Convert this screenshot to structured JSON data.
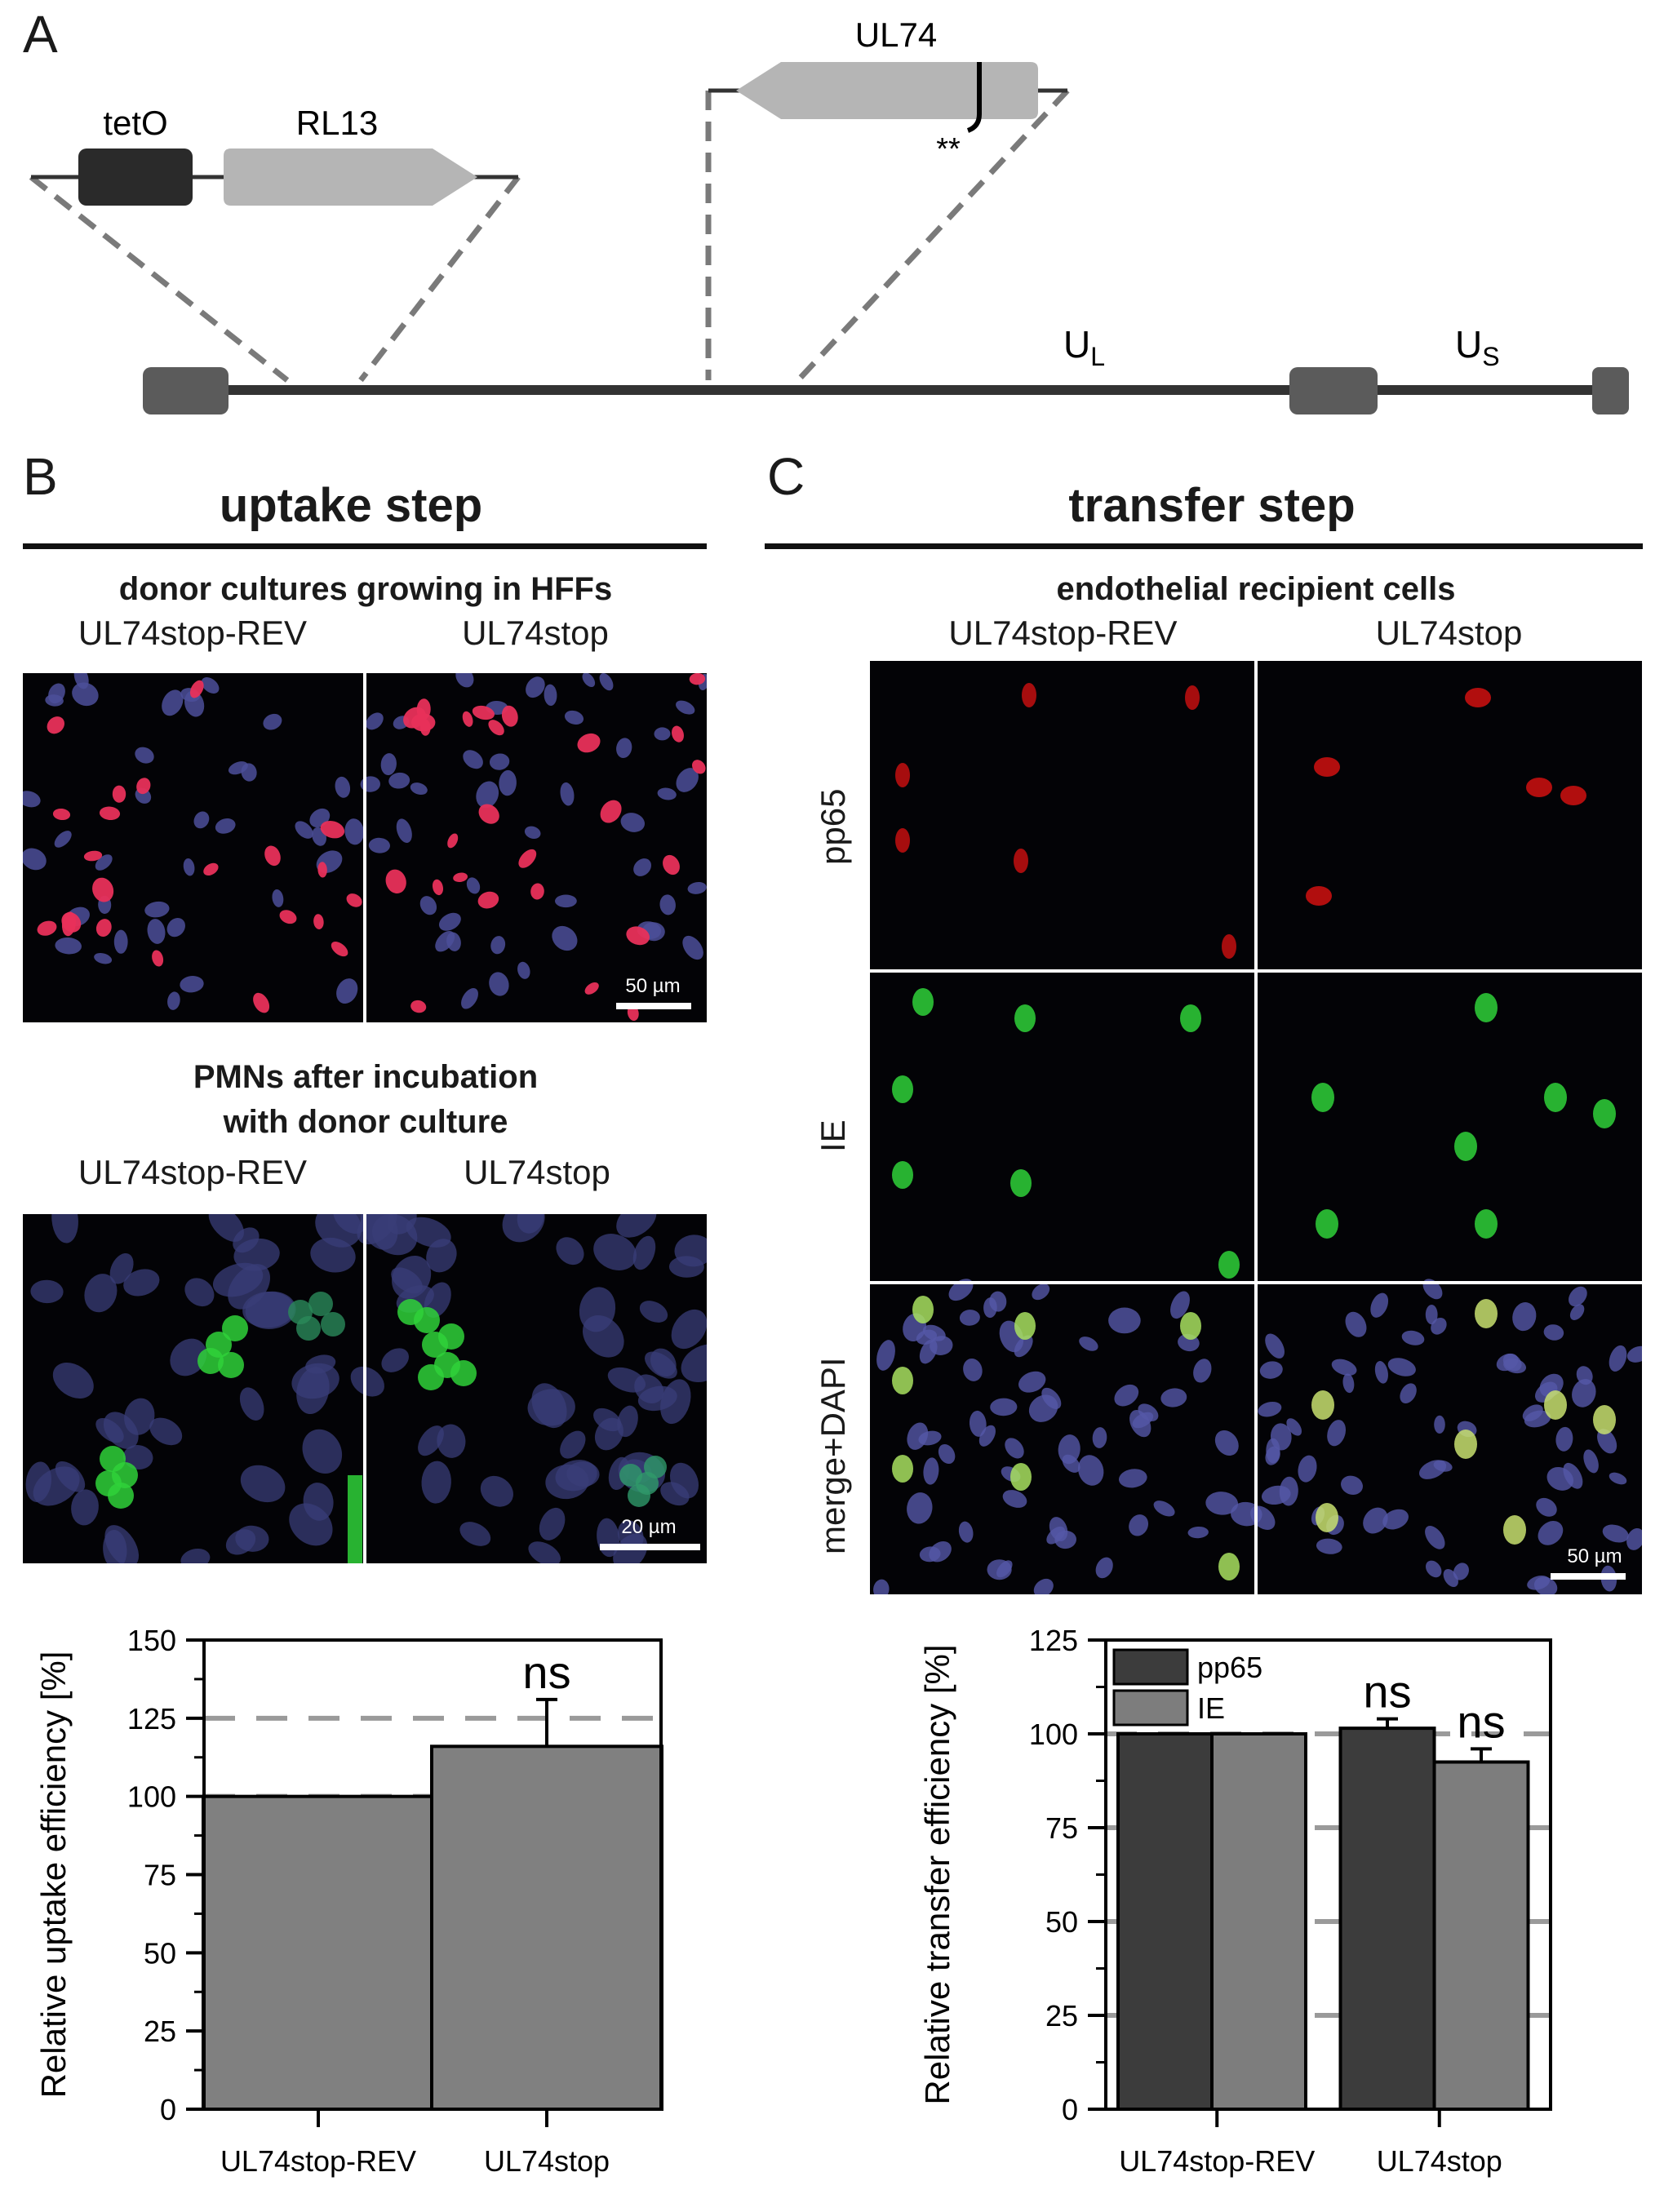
{
  "panels": {
    "a": "A",
    "b": "B",
    "c": "C"
  },
  "genome": {
    "tetO": "tetO",
    "RL13": "RL13",
    "UL74": "UL74",
    "mutation_mark": "**",
    "UL_main": "U",
    "UL_sub": "L",
    "US_main": "U",
    "US_sub": "S"
  },
  "uptake": {
    "title": "uptake step",
    "donor_title": "donor cultures growing in HFFs",
    "donor_cols": [
      "UL74stop-REV",
      "UL74stop"
    ],
    "donor_scale": "50 µm",
    "pmn_title_1": "PMNs after incubation",
    "pmn_title_2": "with donor culture",
    "pmn_cols": [
      "UL74stop-REV",
      "UL74stop"
    ],
    "pmn_scale": "20 µm"
  },
  "transfer": {
    "title": "transfer step",
    "subtitle": "endothelial recipient cells",
    "cols": [
      "UL74stop-REV",
      "UL74stop"
    ],
    "rows": [
      "pp65",
      "IE",
      "merge+DAPI"
    ],
    "scale": "50 µm"
  },
  "colors": {
    "red_nuclei": "#e8305a",
    "blue_nuclei": "#4c4f9a",
    "green_nuclei": "#2fd13a",
    "pp65_red": "#d01010",
    "bar_dark": "#3c3c3c",
    "bar_light": "#7d7d7d",
    "uptake_bar": "#808080"
  },
  "chart_data": [
    {
      "type": "bar",
      "title": "",
      "xlabel": "",
      "ylabel": "Relative uptake efficiency [%]",
      "ylim": [
        0,
        150
      ],
      "yticks": [
        0,
        25,
        50,
        75,
        100,
        125,
        150
      ],
      "categories": [
        "UL74stop-REV",
        "UL74stop"
      ],
      "series": [
        {
          "name": "uptake",
          "values": [
            100,
            116
          ],
          "errors": [
            0,
            15
          ]
        }
      ],
      "reference_line": 125,
      "annotations": [
        {
          "category": "UL74stop",
          "text": "ns"
        }
      ],
      "grid": "dashed at 25, 50, 75, 100, 125"
    },
    {
      "type": "bar",
      "title": "",
      "xlabel": "",
      "ylabel": "Relative transfer efficiency [%]",
      "ylim": [
        0,
        125
      ],
      "yticks": [
        0,
        25,
        50,
        75,
        100,
        125
      ],
      "categories": [
        "UL74stop-REV",
        "UL74stop"
      ],
      "series": [
        {
          "name": "pp65",
          "values": [
            100,
            101.5
          ],
          "errors": [
            0,
            2.5
          ]
        },
        {
          "name": "IE",
          "values": [
            100,
            92.5
          ],
          "errors": [
            0,
            3.5
          ]
        }
      ],
      "reference_line": 100,
      "annotations": [
        {
          "category": "UL74stop",
          "series": "pp65",
          "text": "ns"
        },
        {
          "category": "UL74stop",
          "series": "IE",
          "text": "ns"
        }
      ],
      "legend_position": "top-left",
      "grid": "dashed at 25, 50, 75, 100"
    }
  ]
}
